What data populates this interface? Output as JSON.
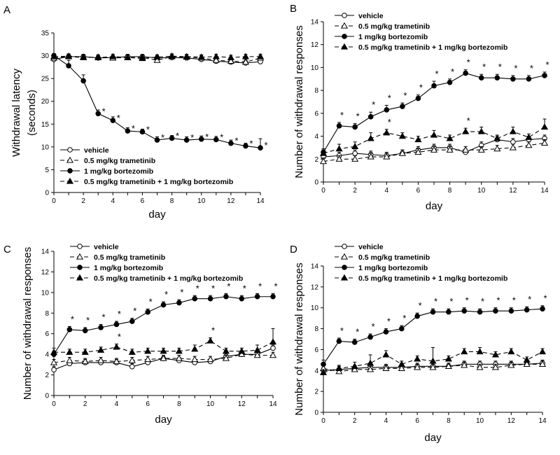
{
  "chart_data": [
    {
      "panel": "A",
      "type": "line",
      "xlabel": "day",
      "ylabel_lines": [
        "Withdrawal latency",
        "(seconds)"
      ],
      "xlim": [
        0,
        14
      ],
      "ylim": [
        0,
        35
      ],
      "xticks": [
        0,
        2,
        4,
        6,
        8,
        10,
        12,
        14
      ],
      "yticks": [
        0,
        5,
        10,
        15,
        20,
        25,
        30,
        35
      ],
      "legend_position": "bottom-left",
      "x": [
        0,
        1,
        2,
        3,
        4,
        5,
        6,
        7,
        8,
        9,
        10,
        11,
        12,
        13,
        14
      ],
      "series": [
        {
          "name": "vehicle",
          "marker": "circle-open",
          "dash": "solid",
          "values": [
            29.2,
            29.8,
            29.8,
            29.5,
            29.6,
            29.8,
            29.8,
            29.5,
            29.6,
            29.5,
            29.2,
            28.8,
            28.6,
            28.4,
            28.7
          ],
          "err": [
            0.5,
            0.5,
            0.5,
            0.5,
            0.5,
            0.5,
            0.5,
            0.5,
            0.5,
            0.5,
            0.5,
            0.5,
            0.5,
            0.5,
            0.5
          ]
        },
        {
          "name": "0.5 mg/kg trametinib",
          "marker": "triangle-open",
          "dash": "dashed",
          "values": [
            29.5,
            29.8,
            29.6,
            29.7,
            29.5,
            29.6,
            29.6,
            29.0,
            29.8,
            29.7,
            29.5,
            29.0,
            28.8,
            28.6,
            29.5
          ],
          "err": [
            0.5,
            0.5,
            0.5,
            0.5,
            0.5,
            0.5,
            0.5,
            0.8,
            0.5,
            0.5,
            0.5,
            0.5,
            0.5,
            0.5,
            0.5
          ]
        },
        {
          "name": "1 mg/kg bortezomib",
          "marker": "circle-filled",
          "dash": "solid",
          "values": [
            30.0,
            27.8,
            24.5,
            17.3,
            15.8,
            13.5,
            13.3,
            11.5,
            11.9,
            11.5,
            11.7,
            11.6,
            10.8,
            10.2,
            9.8
          ],
          "err": [
            0.5,
            1.2,
            1.3,
            0.8,
            0.8,
            0.7,
            0.6,
            0.7,
            0.6,
            0.7,
            0.7,
            0.7,
            0.7,
            0.6,
            2.0
          ],
          "stars": [
            false,
            false,
            false,
            true,
            true,
            true,
            true,
            true,
            true,
            true,
            true,
            true,
            true,
            true,
            true
          ]
        },
        {
          "name": "0.5 mg/kg trametinib + 1 mg/kg bortezomib",
          "marker": "triangle-filled",
          "dash": "dashed",
          "values": [
            29.8,
            29.9,
            29.7,
            29.6,
            29.8,
            29.6,
            29.4,
            29.7,
            29.9,
            29.8,
            29.7,
            29.8,
            29.6,
            29.8,
            29.8
          ],
          "err": [
            0.5,
            0.5,
            0.5,
            0.5,
            0.5,
            0.5,
            0.5,
            0.5,
            0.5,
            0.5,
            0.5,
            0.5,
            0.5,
            0.5,
            0.5
          ]
        }
      ]
    },
    {
      "panel": "B",
      "type": "line",
      "xlabel": "day",
      "ylabel_lines": [
        "Number of withdrawal responses"
      ],
      "xlim": [
        0,
        14
      ],
      "ylim": [
        0,
        14
      ],
      "xticks": [
        0,
        2,
        4,
        6,
        8,
        10,
        12,
        14
      ],
      "yticks": [
        0,
        2,
        4,
        6,
        8,
        10,
        12,
        14
      ],
      "legend_position": "top-left",
      "x": [
        0,
        1,
        2,
        3,
        4,
        5,
        6,
        7,
        8,
        9,
        10,
        11,
        12,
        13,
        14
      ],
      "series": [
        {
          "name": "vehicle",
          "marker": "circle-open",
          "dash": "solid",
          "values": [
            2.2,
            2.3,
            2.5,
            2.4,
            2.3,
            2.5,
            2.8,
            3.0,
            3.0,
            2.6,
            3.2,
            3.7,
            3.5,
            3.7,
            3.8
          ],
          "err": [
            0.3,
            0.3,
            0.3,
            0.3,
            0.3,
            0.3,
            0.3,
            0.3,
            0.3,
            0.3,
            0.3,
            0.3,
            0.3,
            0.3,
            0.3
          ]
        },
        {
          "name": "0.5 mg/kg trametinib",
          "marker": "triangle-open",
          "dash": "dashed",
          "values": [
            1.8,
            2.0,
            2.0,
            2.2,
            2.2,
            2.5,
            2.6,
            2.8,
            2.8,
            2.8,
            2.8,
            2.9,
            3.0,
            3.2,
            3.4
          ],
          "err": [
            0.3,
            0.3,
            0.3,
            0.3,
            0.3,
            0.3,
            0.3,
            0.3,
            0.3,
            0.3,
            0.3,
            0.3,
            0.3,
            0.3,
            0.3
          ]
        },
        {
          "name": "1 mg/kg bortezomib",
          "marker": "circle-filled",
          "dash": "solid",
          "values": [
            2.6,
            4.9,
            4.8,
            5.7,
            6.3,
            6.6,
            7.3,
            8.4,
            8.7,
            9.5,
            9.1,
            9.1,
            9.0,
            9.0,
            9.3
          ],
          "err": [
            0.3,
            0.3,
            0.3,
            0.4,
            0.4,
            0.3,
            0.3,
            0.4,
            0.3,
            0.3,
            0.3,
            0.3,
            0.3,
            0.3,
            0.3
          ],
          "stars": [
            false,
            true,
            true,
            true,
            true,
            true,
            true,
            true,
            true,
            true,
            true,
            true,
            true,
            true,
            true
          ]
        },
        {
          "name": "0.5 mg/kg trametinib + 1 mg/kg bortezomib",
          "marker": "triangle-filled",
          "dash": "dashed",
          "values": [
            2.5,
            2.9,
            3.1,
            3.8,
            4.3,
            4.0,
            3.7,
            4.1,
            3.8,
            4.4,
            4.4,
            3.8,
            4.4,
            3.9,
            4.8
          ],
          "err": [
            0.3,
            0.4,
            0.4,
            0.5,
            0.3,
            0.3,
            0.3,
            0.4,
            0.3,
            0.3,
            0.4,
            0.3,
            0.4,
            0.3,
            0.7
          ],
          "stars": [
            false,
            false,
            false,
            false,
            true,
            false,
            false,
            false,
            false,
            true,
            false,
            false,
            false,
            false,
            false
          ]
        }
      ]
    },
    {
      "panel": "C",
      "type": "line",
      "xlabel": "day",
      "ylabel_lines": [
        "Number of withdrawal responses"
      ],
      "xlim": [
        0,
        14
      ],
      "ylim": [
        0,
        14
      ],
      "xticks": [
        0,
        2,
        4,
        6,
        8,
        10,
        12,
        14
      ],
      "yticks": [
        0,
        2,
        4,
        6,
        8,
        10,
        12,
        14
      ],
      "legend_position": "top-right",
      "x": [
        0,
        1,
        2,
        3,
        4,
        5,
        6,
        7,
        8,
        9,
        10,
        11,
        12,
        13,
        14
      ],
      "series": [
        {
          "name": "vehicle",
          "marker": "circle-open",
          "dash": "solid",
          "values": [
            2.5,
            3.1,
            3.2,
            3.2,
            3.2,
            2.8,
            3.2,
            3.6,
            3.4,
            3.2,
            3.3,
            3.8,
            4.0,
            4.0,
            4.6
          ],
          "err": [
            0.3,
            0.3,
            0.3,
            0.3,
            0.3,
            0.3,
            0.3,
            0.3,
            0.3,
            0.3,
            0.3,
            0.3,
            0.3,
            0.3,
            0.3
          ]
        },
        {
          "name": "0.5 mg/kg trametinib",
          "marker": "triangle-open",
          "dash": "dashed",
          "values": [
            3.2,
            3.4,
            3.3,
            3.4,
            3.3,
            3.4,
            3.5,
            3.6,
            3.6,
            3.5,
            3.5,
            3.6,
            4.0,
            3.9,
            3.9
          ],
          "err": [
            0.3,
            0.3,
            0.3,
            0.3,
            0.3,
            0.3,
            0.3,
            0.3,
            0.3,
            0.3,
            0.3,
            0.3,
            0.3,
            0.3,
            0.3
          ]
        },
        {
          "name": "1 mg/kg bortezomib",
          "marker": "circle-filled",
          "dash": "solid",
          "values": [
            4.0,
            6.4,
            6.3,
            6.6,
            6.9,
            7.2,
            8.1,
            8.8,
            9.0,
            9.4,
            9.4,
            9.6,
            9.4,
            9.6,
            9.6
          ],
          "err": [
            0.3,
            0.3,
            0.3,
            0.3,
            0.3,
            0.3,
            0.3,
            0.3,
            0.3,
            0.3,
            0.3,
            0.3,
            0.3,
            0.3,
            0.3
          ],
          "stars": [
            false,
            true,
            true,
            true,
            true,
            true,
            true,
            true,
            true,
            true,
            true,
            true,
            true,
            true,
            true
          ]
        },
        {
          "name": "0.5 mg/kg trametinib + 1 mg/kg bortezomib",
          "marker": "triangle-filled",
          "dash": "dashed",
          "values": [
            4.2,
            4.2,
            4.2,
            4.4,
            4.7,
            4.2,
            4.3,
            4.3,
            4.3,
            4.5,
            5.3,
            4.3,
            4.3,
            4.4,
            5.2
          ],
          "err": [
            0.4,
            0.3,
            0.3,
            0.3,
            0.3,
            0.3,
            0.3,
            0.3,
            0.3,
            0.4,
            0.3,
            0.3,
            0.3,
            0.5,
            1.3
          ],
          "stars": [
            false,
            false,
            false,
            false,
            true,
            false,
            false,
            false,
            false,
            false,
            true,
            false,
            false,
            false,
            false
          ]
        }
      ]
    },
    {
      "panel": "D",
      "type": "line",
      "xlabel": "day",
      "ylabel_lines": [
        "Number of withdrawal responses"
      ],
      "xlim": [
        0,
        14
      ],
      "ylim": [
        0,
        14
      ],
      "xticks": [
        0,
        2,
        4,
        6,
        8,
        10,
        12,
        14
      ],
      "yticks": [
        0,
        2,
        4,
        6,
        8,
        10,
        12,
        14
      ],
      "legend_position": "top-left",
      "x": [
        0,
        1,
        2,
        3,
        4,
        5,
        6,
        7,
        8,
        9,
        10,
        11,
        12,
        13,
        14
      ],
      "series": [
        {
          "name": "vehicle",
          "marker": "circle-open",
          "dash": "solid",
          "values": [
            4.0,
            4.1,
            4.2,
            4.3,
            4.3,
            4.3,
            4.4,
            4.4,
            4.4,
            4.6,
            4.6,
            4.6,
            4.6,
            4.6,
            4.7
          ],
          "err": [
            0.3,
            0.3,
            0.3,
            0.3,
            0.3,
            0.3,
            0.3,
            0.3,
            0.3,
            0.3,
            0.3,
            0.3,
            0.3,
            0.3,
            0.3
          ]
        },
        {
          "name": "0.5 mg/kg trametinib",
          "marker": "triangle-open",
          "dash": "dashed",
          "values": [
            4.2,
            3.9,
            4.1,
            4.1,
            4.2,
            4.2,
            4.3,
            4.3,
            4.4,
            4.5,
            4.3,
            4.3,
            4.5,
            4.6,
            4.6
          ],
          "err": [
            0.3,
            0.3,
            0.3,
            0.3,
            0.3,
            0.3,
            0.3,
            0.3,
            0.3,
            0.3,
            0.3,
            0.3,
            0.3,
            0.3,
            0.3
          ]
        },
        {
          "name": "1 mg/kg bortezomib",
          "marker": "circle-filled",
          "dash": "solid",
          "values": [
            4.6,
            6.8,
            6.7,
            7.2,
            7.7,
            8.0,
            9.2,
            9.6,
            9.6,
            9.7,
            9.6,
            9.7,
            9.7,
            9.8,
            9.9
          ],
          "err": [
            0.4,
            0.3,
            0.3,
            0.3,
            0.3,
            0.3,
            0.3,
            0.3,
            0.3,
            0.3,
            0.3,
            0.3,
            0.3,
            0.3,
            0.3
          ],
          "stars": [
            false,
            true,
            true,
            true,
            true,
            true,
            true,
            true,
            true,
            true,
            true,
            true,
            true,
            true,
            true
          ]
        },
        {
          "name": "0.5 mg/kg trametinib + 1 mg/kg bortezomib",
          "marker": "triangle-filled",
          "dash": "dashed",
          "values": [
            3.8,
            4.2,
            4.4,
            4.7,
            5.5,
            4.6,
            5.1,
            4.9,
            5.1,
            5.8,
            5.8,
            5.5,
            5.8,
            5.0,
            5.8
          ],
          "err": [
            0.3,
            0.3,
            0.4,
            0.8,
            0.4,
            0.3,
            0.3,
            1.3,
            0.3,
            0.3,
            0.4,
            0.3,
            0.3,
            0.3,
            0.3
          ]
        }
      ]
    }
  ]
}
